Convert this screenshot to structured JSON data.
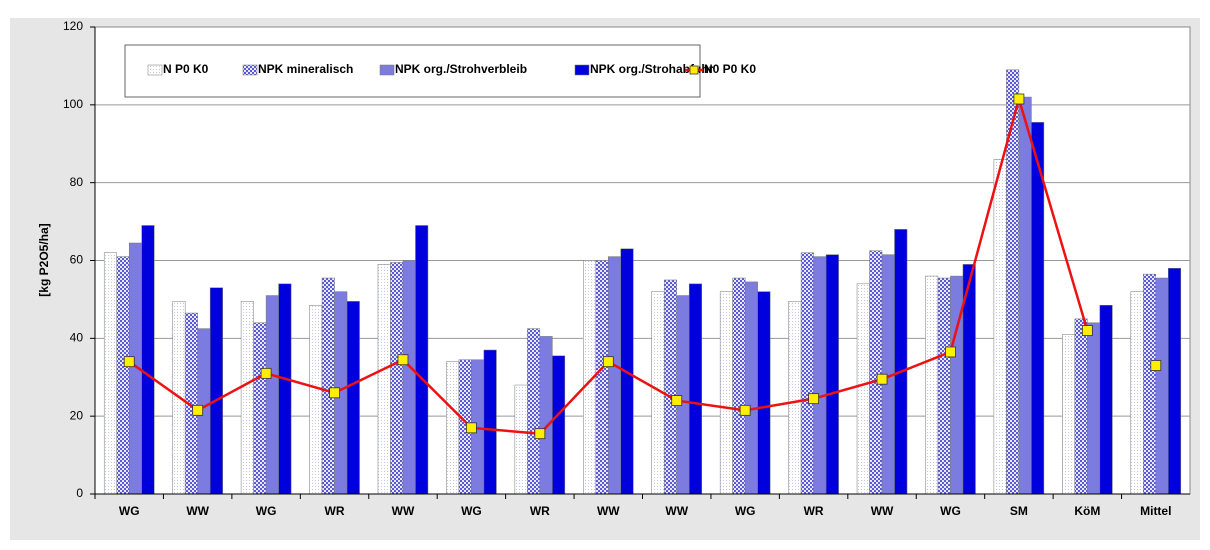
{
  "chart_data": {
    "type": "bar",
    "ylabel": "[kg P2O5/ha]",
    "categories": [
      "WG",
      "WW",
      "WG",
      "WR",
      "WW",
      "WG",
      "WR",
      "WW",
      "WW",
      "WG",
      "WR",
      "WW",
      "WG",
      "SM",
      "KöM",
      "Mittel"
    ],
    "series": [
      {
        "name": "N P0 K0",
        "color": "#c4c8e8",
        "pattern": "dots",
        "values": [
          62,
          49.5,
          49.5,
          48.5,
          59,
          34,
          28,
          60,
          52,
          52,
          49.5,
          54,
          56,
          86,
          41,
          52
        ]
      },
      {
        "name": "NPK mineralisch",
        "color": "#5a5ad8",
        "pattern": "checker",
        "values": [
          61,
          46.5,
          44,
          55.5,
          59.5,
          34.5,
          42.5,
          60,
          55,
          55.5,
          62,
          62.5,
          55.5,
          109,
          45,
          56.5
        ]
      },
      {
        "name": "NPK org./Strohverbleib",
        "color": "#7b7be0",
        "values": [
          64.5,
          42.5,
          51,
          52,
          60,
          34.5,
          40.5,
          61,
          51,
          54.5,
          61,
          61.5,
          56,
          102,
          44,
          55.5
        ]
      },
      {
        "name": "NPK org./Strohabfuhr",
        "color": "#0000dd",
        "values": [
          69,
          53,
          54,
          49.5,
          69,
          37,
          35.5,
          63,
          54,
          52,
          61.5,
          68,
          59,
          95.5,
          48.5,
          58
        ]
      },
      {
        "name": "N0 P0 K0",
        "type": "line",
        "color": "#ee1111",
        "marker_color": "#ffee00",
        "values": [
          34,
          21.5,
          31,
          26,
          34.5,
          17,
          15.5,
          34,
          24,
          21.5,
          24.5,
          29.5,
          36.5,
          101.5,
          42,
          33
        ]
      }
    ],
    "ylim": [
      0,
      120
    ],
    "yticks": [
      0,
      20,
      40,
      60,
      80,
      100,
      120
    ],
    "grid": true
  }
}
